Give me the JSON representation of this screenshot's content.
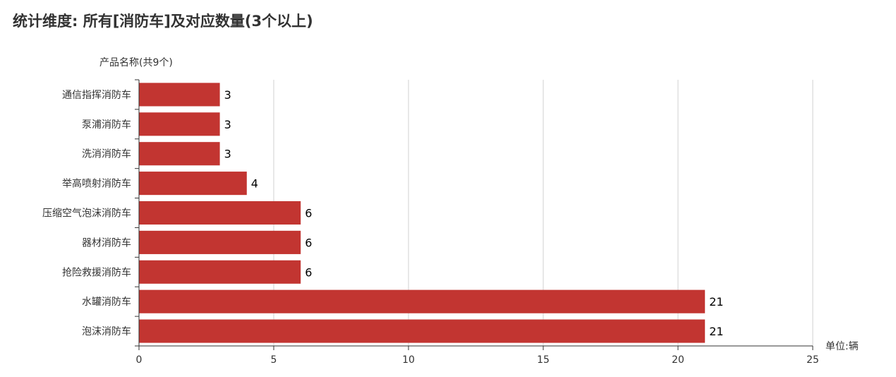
{
  "title": "统计维度: 所有[消防车]及对应数量(3个以上)",
  "chart_data": {
    "type": "bar",
    "orientation": "horizontal",
    "categories": [
      "通信指挥消防车",
      "泵浦消防车",
      "洗消消防车",
      "举高喷射消防车",
      "压缩空气泡沫消防车",
      "器材消防车",
      "抢险救援消防车",
      "水罐消防车",
      "泡沫消防车"
    ],
    "values": [
      3,
      3,
      3,
      4,
      6,
      6,
      6,
      21,
      21
    ],
    "ylabel": "产品名称(共9个)",
    "xlabel": "单位:辆",
    "xlim": [
      0,
      25
    ],
    "xticks": [
      0,
      5,
      10,
      15,
      20,
      25
    ],
    "grid": "vertical",
    "data_labels": true,
    "bar_color": "#c23531"
  }
}
